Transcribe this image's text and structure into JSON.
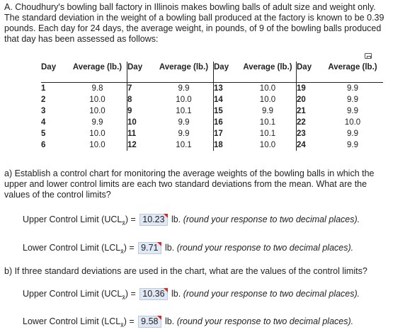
{
  "intro": {
    "lines": [
      "A. Choudhury's bowling ball factory in Illinois makes bowling balls of adult size and weight only.",
      "The standard deviation in the weight of a bowling ball produced at the factory is known to be 0.39",
      "pounds. Each day for 24 days, the average weight, in pounds, of 9 of the bowling balls produced",
      "that day has been assessed as follows:"
    ]
  },
  "table": {
    "day_header": "Day",
    "avg_header": "Average (lb.)",
    "groups": [
      {
        "days": [
          "1",
          "2",
          "3",
          "4",
          "5",
          "6"
        ],
        "avgs": [
          "9.8",
          "10.0",
          "10.0",
          "9.9",
          "10.0",
          "10.0"
        ]
      },
      {
        "days": [
          "7",
          "8",
          "9",
          "10",
          "11",
          "12"
        ],
        "avgs": [
          "9.9",
          "10.0",
          "10.1",
          "9.9",
          "9.9",
          "10.1"
        ]
      },
      {
        "days": [
          "13",
          "14",
          "15",
          "16",
          "17",
          "18"
        ],
        "avgs": [
          "10.0",
          "10.0",
          "9.9",
          "10.1",
          "10.1",
          "10.0"
        ]
      },
      {
        "days": [
          "19",
          "20",
          "21",
          "22",
          "23",
          "24"
        ],
        "avgs": [
          "9.9",
          "9.9",
          "9.9",
          "10.0",
          "9.9",
          "9.9"
        ]
      }
    ]
  },
  "part_a": {
    "question_lines": [
      "a) Establish a control chart for monitoring the average weights of the bowling balls in which the",
      "upper and lower control limits are each two standard deviations from the mean. What are the",
      "values of the control limits?"
    ],
    "ucl_label_pre": "Upper Control Limit (UCL",
    "lcl_label_pre": "Lower Control Limit (LCL",
    "sub": "x̄",
    "label_post": ") =",
    "ucl_value": "10.23",
    "lcl_value": "9.71",
    "unit": "lb.",
    "note": "(round your response to two decimal places)."
  },
  "part_b": {
    "question": "b) If three standard deviations are used in the chart, what are the values of the control limits?",
    "ucl_label_pre": "Upper Control Limit (UCL",
    "lcl_label_pre": "Lower Control Limit (LCL",
    "sub": "x̄",
    "label_post": ") =",
    "ucl_value": "10.36",
    "lcl_value": "9.58",
    "unit": "lb.",
    "note": "(round your response to two decimal places)."
  }
}
